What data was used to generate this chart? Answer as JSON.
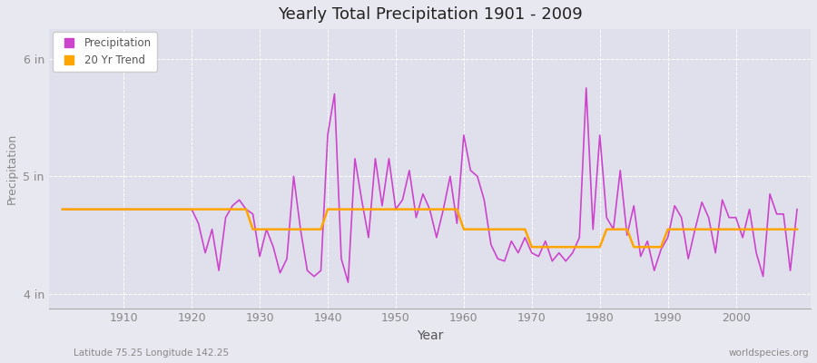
{
  "title": "Yearly Total Precipitation 1901 - 2009",
  "xlabel": "Year",
  "ylabel": "Precipitation",
  "bottom_left_label": "Latitude 75.25 Longitude 142.25",
  "bottom_right_label": "worldspecies.org",
  "years": [
    1901,
    1902,
    1903,
    1904,
    1905,
    1906,
    1907,
    1908,
    1909,
    1910,
    1911,
    1912,
    1913,
    1914,
    1915,
    1916,
    1917,
    1918,
    1919,
    1920,
    1921,
    1922,
    1923,
    1924,
    1925,
    1926,
    1927,
    1928,
    1929,
    1930,
    1931,
    1932,
    1933,
    1934,
    1935,
    1936,
    1937,
    1938,
    1939,
    1940,
    1941,
    1942,
    1943,
    1944,
    1945,
    1946,
    1947,
    1948,
    1949,
    1950,
    1951,
    1952,
    1953,
    1954,
    1955,
    1956,
    1957,
    1958,
    1959,
    1960,
    1961,
    1962,
    1963,
    1964,
    1965,
    1966,
    1967,
    1968,
    1969,
    1970,
    1971,
    1972,
    1973,
    1974,
    1975,
    1976,
    1977,
    1978,
    1979,
    1980,
    1981,
    1982,
    1983,
    1984,
    1985,
    1986,
    1987,
    1988,
    1989,
    1990,
    1991,
    1992,
    1993,
    1994,
    1995,
    1996,
    1997,
    1998,
    1999,
    2000,
    2001,
    2002,
    2003,
    2004,
    2005,
    2006,
    2007,
    2008,
    2009
  ],
  "precip": [
    4.72,
    4.72,
    4.72,
    4.72,
    4.72,
    4.72,
    4.72,
    4.72,
    4.72,
    4.72,
    4.72,
    4.72,
    4.72,
    4.72,
    4.72,
    4.72,
    4.72,
    4.72,
    4.72,
    4.72,
    4.6,
    4.35,
    4.55,
    4.2,
    4.65,
    4.75,
    4.8,
    4.72,
    4.68,
    4.32,
    4.55,
    4.4,
    4.18,
    4.3,
    5.0,
    4.55,
    4.2,
    4.15,
    4.2,
    5.35,
    5.7,
    4.3,
    4.1,
    5.15,
    4.8,
    4.48,
    5.15,
    4.75,
    5.15,
    4.72,
    4.8,
    5.05,
    4.65,
    4.85,
    4.72,
    4.48,
    4.72,
    5.0,
    4.6,
    5.35,
    5.05,
    5.0,
    4.8,
    4.42,
    4.3,
    4.28,
    4.45,
    4.35,
    4.48,
    4.35,
    4.32,
    4.45,
    4.28,
    4.35,
    4.28,
    4.35,
    4.48,
    5.75,
    4.55,
    5.35,
    4.65,
    4.55,
    5.05,
    4.5,
    4.75,
    4.32,
    4.45,
    4.2,
    4.38,
    4.48,
    4.75,
    4.65,
    4.3,
    4.55,
    4.78,
    4.65,
    4.35,
    4.8,
    4.65,
    4.65,
    4.48,
    4.72,
    4.35,
    4.15,
    4.85,
    4.68,
    4.68,
    4.2,
    4.72
  ],
  "trend": [
    4.72,
    4.72,
    4.72,
    4.72,
    4.72,
    4.72,
    4.72,
    4.72,
    4.72,
    4.72,
    4.72,
    4.72,
    4.72,
    4.72,
    4.72,
    4.72,
    4.72,
    4.72,
    4.72,
    4.72,
    4.72,
    4.72,
    4.72,
    4.72,
    4.72,
    4.72,
    4.72,
    4.72,
    4.55,
    4.55,
    4.55,
    4.55,
    4.55,
    4.55,
    4.55,
    4.55,
    4.55,
    4.55,
    4.55,
    4.72,
    4.72,
    4.72,
    4.72,
    4.72,
    4.72,
    4.72,
    4.72,
    4.72,
    4.72,
    4.72,
    4.72,
    4.72,
    4.72,
    4.72,
    4.72,
    4.72,
    4.72,
    4.72,
    4.72,
    4.55,
    4.55,
    4.55,
    4.55,
    4.55,
    4.55,
    4.55,
    4.55,
    4.55,
    4.55,
    4.4,
    4.4,
    4.4,
    4.4,
    4.4,
    4.4,
    4.4,
    4.4,
    4.4,
    4.4,
    4.4,
    4.55,
    4.55,
    4.55,
    4.55,
    4.4,
    4.4,
    4.4,
    4.4,
    4.4,
    4.55,
    4.55,
    4.55,
    4.55,
    4.55,
    4.55,
    4.55,
    4.55,
    4.55,
    4.55,
    4.55,
    4.55,
    4.55,
    4.55,
    4.55,
    4.55,
    4.55,
    4.55,
    4.55,
    4.55
  ],
  "precip_color": "#CC44CC",
  "trend_color": "#FFA500",
  "bg_color": "#E8E8F0",
  "plot_bg_color": "#E0E0EC",
  "ylim": [
    3.88,
    6.25
  ],
  "yticks": [
    4.0,
    5.0,
    6.0
  ],
  "ytick_labels": [
    "4 in",
    "5 in",
    "6 in"
  ],
  "xlim": [
    1899,
    2011
  ],
  "xticks": [
    1910,
    1920,
    1930,
    1940,
    1950,
    1960,
    1970,
    1980,
    1990,
    2000
  ]
}
